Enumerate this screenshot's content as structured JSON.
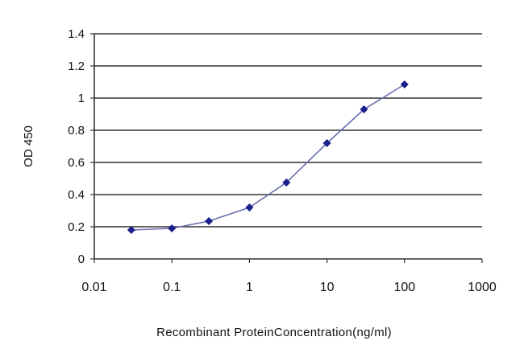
{
  "chart_data": {
    "type": "line",
    "title": "",
    "xlabel": "Recombinant ProteinConcentration(ng/ml)",
    "ylabel": "OD 450",
    "xscale": "log",
    "xlim": [
      0.01,
      1000
    ],
    "ylim": [
      0,
      1.4
    ],
    "xticks": [
      "0.01",
      "0.1",
      "1",
      "10",
      "100",
      "1000"
    ],
    "xtick_values": [
      0.01,
      0.1,
      1,
      10,
      100,
      1000
    ],
    "yticks": [
      "0",
      "0.2",
      "0.4",
      "0.6",
      "0.8",
      "1",
      "1.2",
      "1.4"
    ],
    "ytick_values": [
      0,
      0.2,
      0.4,
      0.6,
      0.8,
      1,
      1.2,
      1.4
    ],
    "grid": "horizontal",
    "legend": "none",
    "series": [
      {
        "color": "#1a1f8c",
        "marker": "diamond",
        "x": [
          0.03,
          0.1,
          0.3,
          1,
          3,
          10,
          30,
          100
        ],
        "y": [
          0.18,
          0.19,
          0.235,
          0.32,
          0.475,
          0.72,
          0.93,
          1.085
        ]
      }
    ]
  }
}
